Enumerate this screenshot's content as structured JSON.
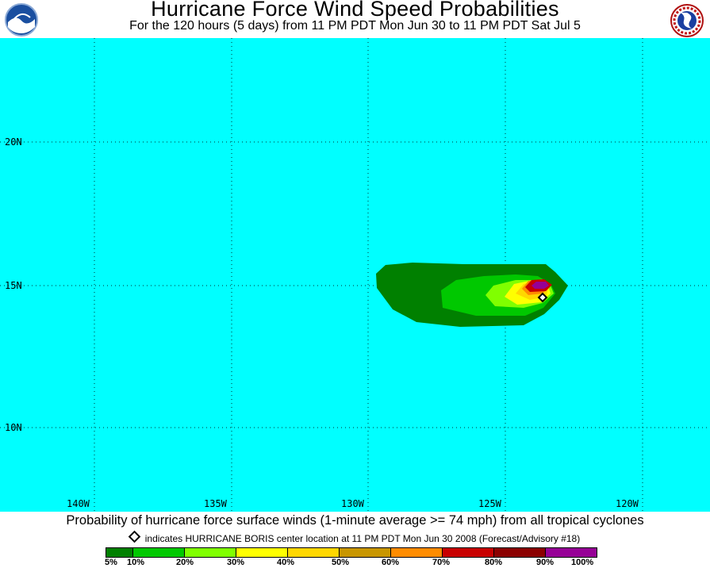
{
  "header": {
    "title": "Hurricane Force Wind Speed Probabilities",
    "subtitle": "For the 120 hours (5 days) from 11 PM PDT Mon Jun 30 to 11 PM PDT Sat Jul 5",
    "left_logo_text": "NOAA",
    "right_logo_text": "NATIONAL WEATHER SERVICE"
  },
  "map": {
    "background_color": "#00ffff",
    "latitude_labels": [
      "20N",
      "15N",
      "10N"
    ],
    "longitude_labels": [
      "140W",
      "135W",
      "130W",
      "125W",
      "120W"
    ],
    "storm_center_icon": "diamond-marker-icon"
  },
  "footer": {
    "caption": "Probability of hurricane force surface winds (1-minute average >= 74 mph) from all tropical cyclones",
    "center_note": "indicates HURRICANE BORIS center location at 11 PM PDT Mon Jun 30 2008 (Forecast/Advisory #18)",
    "legend": {
      "colors": [
        "#008000",
        "#00c800",
        "#80ff00",
        "#ffff00",
        "#ffd700",
        "#c89600",
        "#ff8c00",
        "#c80000",
        "#8b0000",
        "#960096"
      ],
      "ticks": [
        "5%",
        "10%",
        "20%",
        "30%",
        "40%",
        "50%",
        "60%",
        "70%",
        "80%",
        "90%",
        "100%"
      ]
    }
  }
}
